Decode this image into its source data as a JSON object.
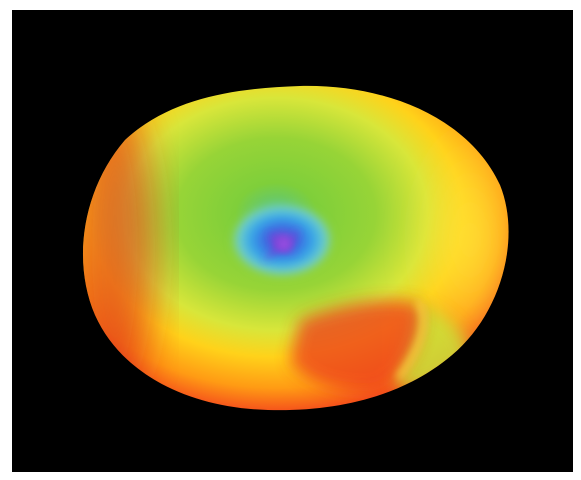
{
  "image": {
    "colors": {
      "frame": "#ffffff",
      "background": "#000000",
      "outer_rim": "#e8231c",
      "mid_ring": "#ffd21a",
      "inner_field": "#8fd12e",
      "core": "#2f8ae6",
      "center": "#8a4fd8"
    }
  }
}
